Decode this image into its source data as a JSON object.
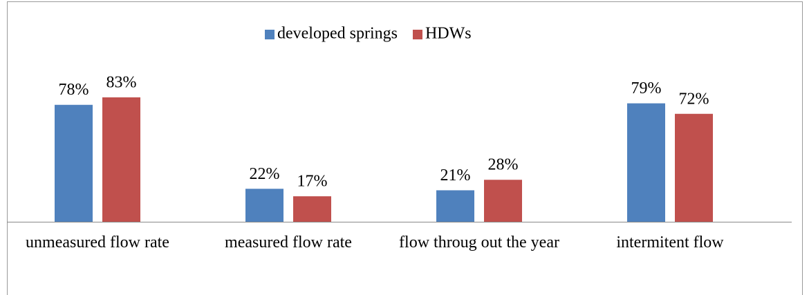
{
  "chart_data": {
    "type": "bar",
    "categories": [
      "unmeasured flow rate",
      "measured flow rate",
      "flow throug out the year",
      "intermitent flow"
    ],
    "series": [
      {
        "name": "developed springs",
        "color": "#4f81bd",
        "values": [
          78,
          22,
          21,
          79
        ],
        "value_labels": [
          "78%",
          "22%",
          "21%",
          "79%"
        ]
      },
      {
        "name": "HDWs",
        "color": "#c0504d",
        "values": [
          83,
          17,
          28,
          72
        ],
        "value_labels": [
          "83%",
          "17%",
          "28%",
          "72%"
        ]
      }
    ],
    "ylim": [
      0,
      100
    ],
    "grid": false,
    "legend": "top"
  }
}
